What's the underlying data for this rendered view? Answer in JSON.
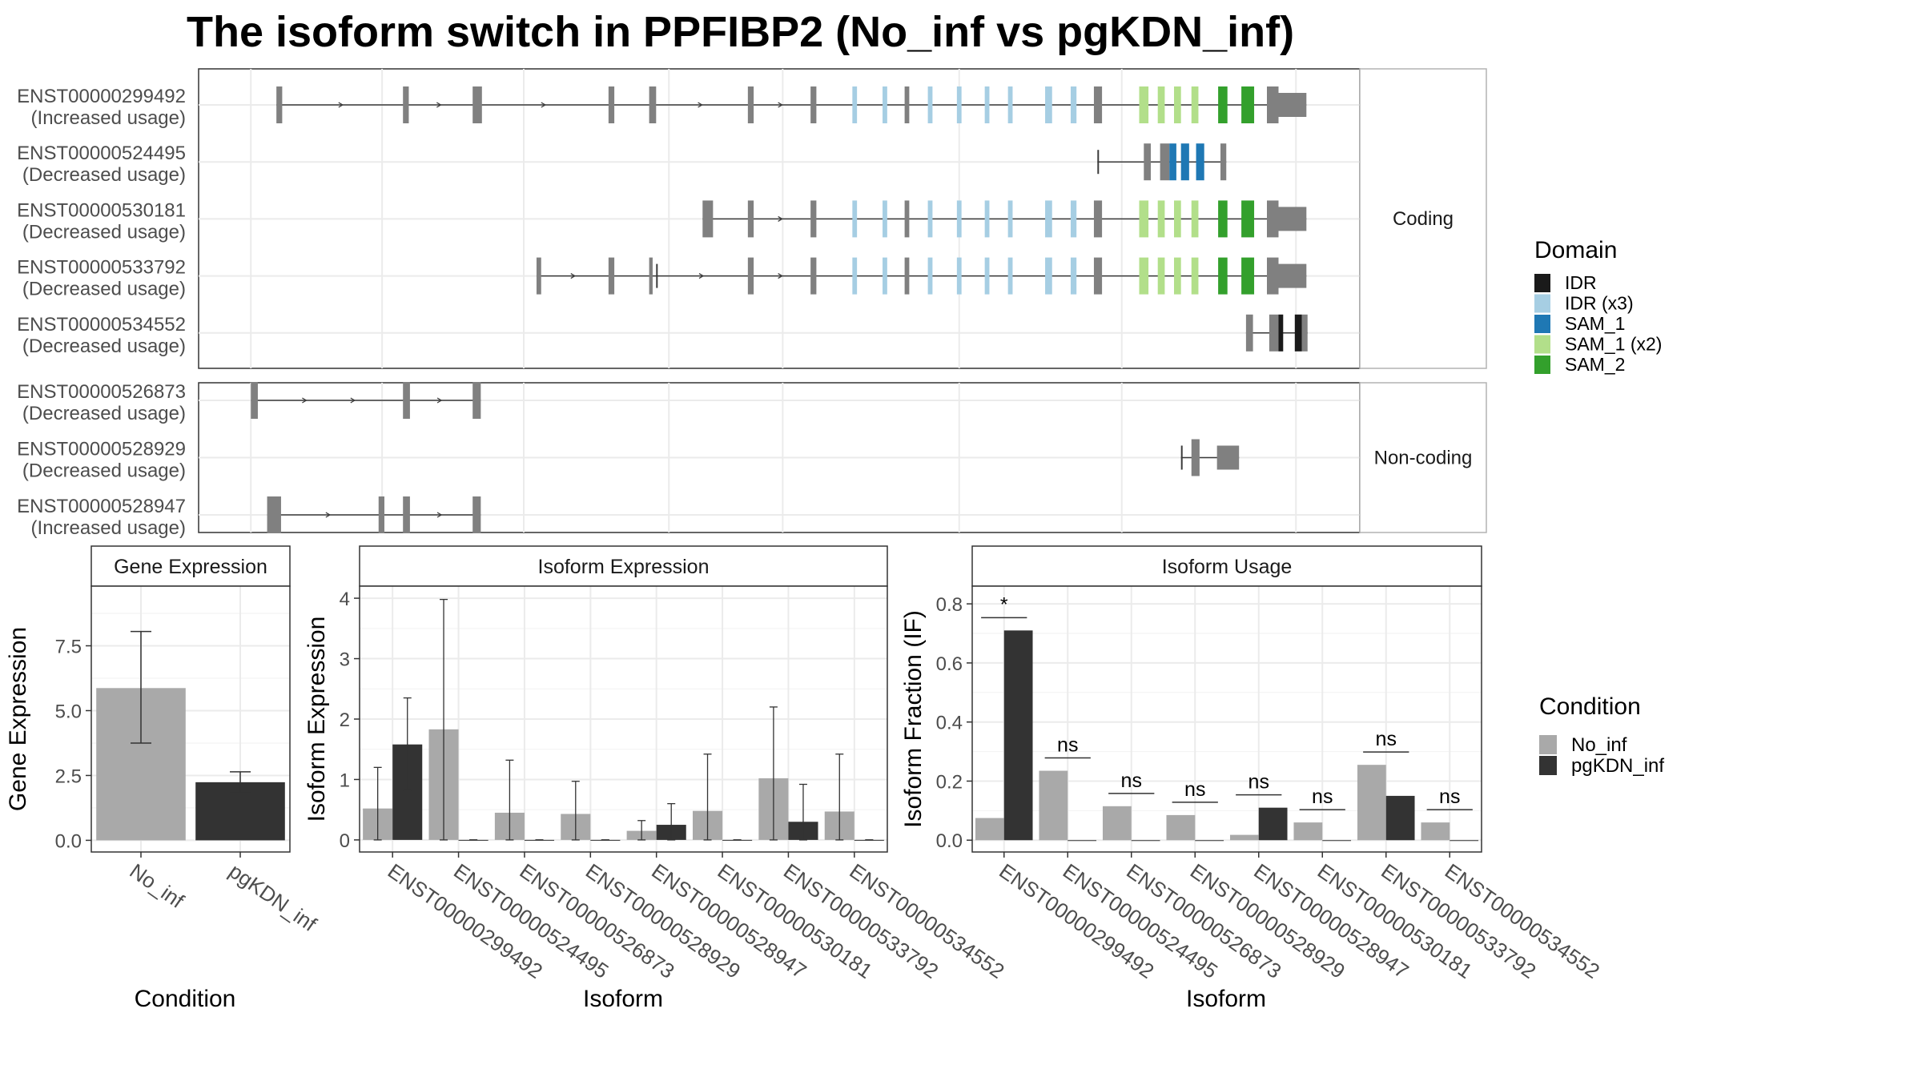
{
  "title": "The isoform switch in PPFIBP2 (No_inf vs pgKDN_inf)",
  "colors": {
    "intron": "#3a3a3a",
    "exon": "#808080",
    "no_inf": "#a9a9a9",
    "pgkdn_inf": "#333333",
    "grid": "#ebebeb",
    "panel_border": "#333333",
    "strip_border": "#b3b3b3"
  },
  "domain_legend": {
    "title": "Domain",
    "items": [
      {
        "label": "IDR",
        "color": "#1a1a1a"
      },
      {
        "label": "IDR (x3)",
        "color": "#a6cee3"
      },
      {
        "label": "SAM_1",
        "color": "#1f78b4"
      },
      {
        "label": "SAM_1 (x2)",
        "color": "#b2df8a"
      },
      {
        "label": "SAM_2",
        "color": "#33a02c"
      }
    ]
  },
  "condition_legend": {
    "title": "Condition",
    "items": [
      {
        "label": "No_inf",
        "color": "#a9a9a9"
      },
      {
        "label": "pgKDN_inf",
        "color": "#333333"
      }
    ]
  },
  "transcript_panels": [
    {
      "facet": "Coding",
      "transcripts": [
        {
          "id": "ENST00000299492",
          "usage": "(Increased usage)",
          "exons": [
            [
              0.067,
              0.072,
              "n"
            ],
            [
              0.176,
              0.181,
              "n"
            ],
            [
              0.236,
              0.244,
              "n"
            ],
            [
              0.353,
              0.358,
              "n"
            ],
            [
              0.388,
              0.394,
              "n"
            ],
            [
              0.473,
              0.478,
              "n"
            ],
            [
              0.527,
              0.532,
              "n"
            ],
            [
              0.563,
              0.567,
              "idr3"
            ],
            [
              0.589,
              0.593,
              "idr3"
            ],
            [
              0.608,
              0.612,
              "n"
            ],
            [
              0.628,
              0.632,
              "idr3"
            ],
            [
              0.653,
              0.657,
              "idr3"
            ],
            [
              0.677,
              0.681,
              "idr3"
            ],
            [
              0.697,
              0.701,
              "idr3"
            ],
            [
              0.729,
              0.735,
              "idr3"
            ],
            [
              0.751,
              0.756,
              "idr3"
            ],
            [
              0.771,
              0.778,
              "n"
            ],
            [
              0.81,
              0.818,
              "sam12"
            ],
            [
              0.826,
              0.832,
              "sam12"
            ],
            [
              0.84,
              0.846,
              "sam12"
            ],
            [
              0.855,
              0.861,
              "sam12"
            ],
            [
              0.878,
              0.886,
              "sam2"
            ],
            [
              0.898,
              0.909,
              "sam2"
            ],
            [
              0.92,
              0.93,
              "n"
            ],
            [
              0.93,
              0.954,
              "big"
            ]
          ]
        },
        {
          "id": "ENST00000524495",
          "usage": "(Decreased usage)",
          "exons": [
            [
              0.774,
              0.776,
              "tick"
            ],
            [
              0.814,
              0.82,
              "n"
            ],
            [
              0.828,
              0.836,
              "n"
            ],
            [
              0.836,
              0.842,
              "sam1"
            ],
            [
              0.846,
              0.853,
              "sam1"
            ],
            [
              0.859,
              0.866,
              "sam1"
            ],
            [
              0.88,
              0.885,
              "n"
            ]
          ]
        },
        {
          "id": "ENST00000530181",
          "usage": "(Decreased usage)",
          "exons": [
            [
              0.434,
              0.443,
              "n"
            ],
            [
              0.473,
              0.478,
              "n"
            ],
            [
              0.527,
              0.532,
              "n"
            ],
            [
              0.563,
              0.567,
              "idr3"
            ],
            [
              0.589,
              0.593,
              "idr3"
            ],
            [
              0.608,
              0.612,
              "n"
            ],
            [
              0.628,
              0.632,
              "idr3"
            ],
            [
              0.653,
              0.657,
              "idr3"
            ],
            [
              0.677,
              0.681,
              "idr3"
            ],
            [
              0.697,
              0.701,
              "idr3"
            ],
            [
              0.729,
              0.735,
              "idr3"
            ],
            [
              0.751,
              0.756,
              "idr3"
            ],
            [
              0.771,
              0.778,
              "n"
            ],
            [
              0.81,
              0.818,
              "sam12"
            ],
            [
              0.826,
              0.832,
              "sam12"
            ],
            [
              0.84,
              0.846,
              "sam12"
            ],
            [
              0.855,
              0.861,
              "sam12"
            ],
            [
              0.878,
              0.886,
              "sam2"
            ],
            [
              0.898,
              0.909,
              "sam2"
            ],
            [
              0.92,
              0.93,
              "n"
            ],
            [
              0.93,
              0.954,
              "big"
            ]
          ]
        },
        {
          "id": "ENST00000533792",
          "usage": "(Decreased usage)",
          "exons": [
            [
              0.291,
              0.295,
              "n"
            ],
            [
              0.353,
              0.358,
              "n"
            ],
            [
              0.388,
              0.391,
              "n"
            ],
            [
              0.394,
              0.396,
              "tick"
            ],
            [
              0.473,
              0.478,
              "n"
            ],
            [
              0.527,
              0.532,
              "n"
            ],
            [
              0.563,
              0.567,
              "idr3"
            ],
            [
              0.589,
              0.593,
              "idr3"
            ],
            [
              0.608,
              0.612,
              "n"
            ],
            [
              0.628,
              0.632,
              "idr3"
            ],
            [
              0.653,
              0.657,
              "idr3"
            ],
            [
              0.677,
              0.681,
              "idr3"
            ],
            [
              0.697,
              0.701,
              "idr3"
            ],
            [
              0.729,
              0.735,
              "idr3"
            ],
            [
              0.751,
              0.756,
              "idr3"
            ],
            [
              0.771,
              0.778,
              "n"
            ],
            [
              0.81,
              0.818,
              "sam12"
            ],
            [
              0.826,
              0.832,
              "sam12"
            ],
            [
              0.84,
              0.846,
              "sam12"
            ],
            [
              0.855,
              0.861,
              "sam12"
            ],
            [
              0.878,
              0.886,
              "sam2"
            ],
            [
              0.898,
              0.909,
              "sam2"
            ],
            [
              0.92,
              0.93,
              "n"
            ],
            [
              0.93,
              0.954,
              "big"
            ]
          ]
        },
        {
          "id": "ENST00000534552",
          "usage": "(Decreased usage)",
          "exons": [
            [
              0.902,
              0.908,
              "n"
            ],
            [
              0.922,
              0.93,
              "n"
            ],
            [
              0.93,
              0.934,
              "idr"
            ],
            [
              0.944,
              0.95,
              "idr"
            ],
            [
              0.95,
              0.955,
              "n"
            ]
          ]
        }
      ]
    },
    {
      "facet": "Non-coding",
      "transcripts": [
        {
          "id": "ENST00000526873",
          "usage": "(Decreased usage)",
          "exons": [
            [
              0.045,
              0.051,
              "n"
            ],
            [
              0.176,
              0.182,
              "n"
            ],
            [
              0.236,
              0.243,
              "n"
            ]
          ]
        },
        {
          "id": "ENST00000528929",
          "usage": "(Decreased usage)",
          "exons": [
            [
              0.846,
              0.848,
              "tick"
            ],
            [
              0.855,
              0.862,
              "n"
            ],
            [
              0.877,
              0.896,
              "big"
            ]
          ]
        },
        {
          "id": "ENST00000528947",
          "usage": "(Increased usage)",
          "exons": [
            [
              0.059,
              0.071,
              "n"
            ],
            [
              0.155,
              0.16,
              "n"
            ],
            [
              0.176,
              0.182,
              "n"
            ],
            [
              0.236,
              0.243,
              "n"
            ]
          ]
        }
      ]
    }
  ],
  "chart_data": [
    {
      "type": "bar",
      "title": "Gene Expression",
      "xlabel": "Condition",
      "ylabel": "Gene Expression",
      "categories": [
        "No_inf",
        "pgKDN_inf"
      ],
      "values": [
        5.87,
        2.24
      ],
      "error": [
        [
          3.75,
          8.05
        ],
        [
          1.82,
          2.64
        ]
      ],
      "ylim": [
        -0.45,
        9.8
      ],
      "yticks": [
        0.0,
        2.5,
        5.0,
        7.5
      ],
      "ytick_labels": [
        "0.0",
        "2.5",
        "5.0",
        "7.5"
      ],
      "grid": true
    },
    {
      "type": "bar",
      "title": "Isoform Expression",
      "xlabel": "Isoform",
      "ylabel": "Isoform Expression",
      "categories": [
        "ENST00000299492",
        "ENST00000524495",
        "ENST00000526873",
        "ENST00000528929",
        "ENST00000528947",
        "ENST00000530181",
        "ENST00000533792",
        "ENST00000534552"
      ],
      "series": [
        {
          "name": "No_inf",
          "values": [
            0.52,
            1.83,
            0.45,
            0.43,
            0.15,
            0.48,
            1.02,
            0.47
          ],
          "error": [
            [
              0.0,
              1.2
            ],
            [
              0.0,
              3.98
            ],
            [
              0.0,
              1.32
            ],
            [
              0.0,
              0.97
            ],
            [
              0.0,
              0.32
            ],
            [
              0.0,
              1.42
            ],
            [
              0.0,
              2.2
            ],
            [
              0.0,
              1.42
            ]
          ]
        },
        {
          "name": "pgKDN_inf",
          "values": [
            1.58,
            0.0,
            0.0,
            0.0,
            0.25,
            0.0,
            0.3,
            0.0
          ],
          "error": [
            [
              0.82,
              2.35
            ],
            [
              0.0,
              0.0
            ],
            [
              0.0,
              0.0
            ],
            [
              0.0,
              0.0
            ],
            [
              0.0,
              0.6
            ],
            [
              0.0,
              0.0
            ],
            [
              0.0,
              0.92
            ],
            [
              0.0,
              0.0
            ]
          ]
        }
      ],
      "ylim": [
        -0.2,
        4.2
      ],
      "yticks": [
        0,
        1,
        2,
        3,
        4
      ],
      "ytick_labels": [
        "0",
        "1",
        "2",
        "3",
        "4"
      ],
      "grid": true
    },
    {
      "type": "bar",
      "title": "Isoform Usage",
      "xlabel": "Isoform",
      "ylabel": "Isoform Fraction (IF)",
      "categories": [
        "ENST00000299492",
        "ENST00000524495",
        "ENST00000526873",
        "ENST00000528929",
        "ENST00000528947",
        "ENST00000530181",
        "ENST00000533792",
        "ENST00000534552"
      ],
      "series": [
        {
          "name": "No_inf",
          "values": [
            0.075,
            0.235,
            0.115,
            0.085,
            0.018,
            0.06,
            0.255,
            0.06
          ]
        },
        {
          "name": "pgKDN_inf",
          "values": [
            0.71,
            0.0,
            0.0,
            0.0,
            0.11,
            0.0,
            0.15,
            0.0
          ]
        }
      ],
      "significance": [
        "*",
        "ns",
        "ns",
        "ns",
        "ns",
        "ns",
        "ns",
        "ns"
      ],
      "ylim": [
        -0.04,
        0.86
      ],
      "yticks": [
        0.0,
        0.2,
        0.4,
        0.6,
        0.8
      ],
      "ytick_labels": [
        "0.0",
        "0.2",
        "0.4",
        "0.6",
        "0.8"
      ],
      "grid": true
    }
  ]
}
